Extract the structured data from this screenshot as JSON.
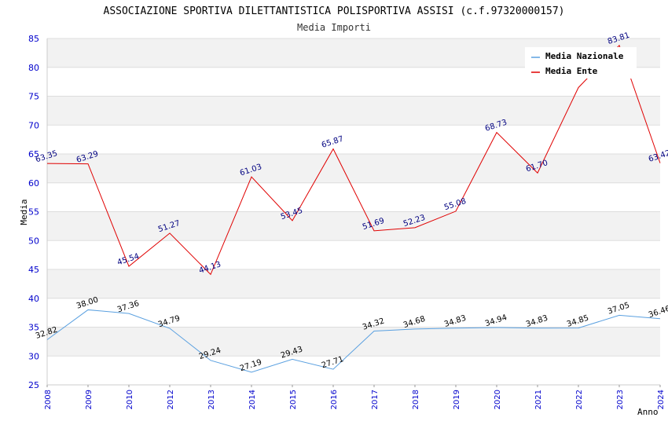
{
  "chart_data": {
    "type": "line",
    "title": "ASSOCIAZIONE SPORTIVA DILETTANTISTICA POLISPORTIVA ASSISI (c.f.97320000157)",
    "subtitle": "Media Importi",
    "xlabel": "Anno",
    "ylabel": "Media",
    "ylim": [
      25,
      85
    ],
    "yticks": [
      "25",
      "30",
      "35",
      "40",
      "45",
      "50",
      "55",
      "60",
      "65",
      "70",
      "75",
      "80",
      "85"
    ],
    "categories": [
      "2008",
      "2009",
      "2010",
      "2012",
      "2013",
      "2014",
      "2015",
      "2016",
      "2017",
      "2018",
      "2019",
      "2020",
      "2021",
      "2022",
      "2023",
      "2024"
    ],
    "legend_position": "top-right",
    "series": [
      {
        "name": "Media Nazionale",
        "color": "#5aa0e0",
        "label_color": "#000000",
        "values": [
          32.82,
          38.0,
          37.36,
          34.79,
          29.24,
          27.19,
          29.43,
          27.71,
          34.32,
          34.68,
          34.83,
          34.94,
          34.83,
          34.85,
          37.05,
          36.46
        ],
        "labels": [
          "32.82",
          "38.00",
          "37.36",
          "34.79",
          "29.24",
          "27.19",
          "29.43",
          "27.71",
          "34.32",
          "34.68",
          "34.83",
          "34.94",
          "34.83",
          "34.85",
          "37.05",
          "36.46"
        ]
      },
      {
        "name": "Media Ente",
        "color": "#e00000",
        "label_color": "#000080",
        "values": [
          63.35,
          63.29,
          45.54,
          51.27,
          44.13,
          61.03,
          53.45,
          65.87,
          51.69,
          52.23,
          55.08,
          68.73,
          61.7,
          76.5,
          83.81,
          63.42
        ],
        "labels": [
          "63.35",
          "63.29",
          "45.54",
          "51.27",
          "44.13",
          "61.03",
          "53.45",
          "65.87",
          "51.69",
          "52.23",
          "55.08",
          "68.73",
          "61.70",
          "",
          "83.81",
          "63.42"
        ]
      }
    ]
  }
}
